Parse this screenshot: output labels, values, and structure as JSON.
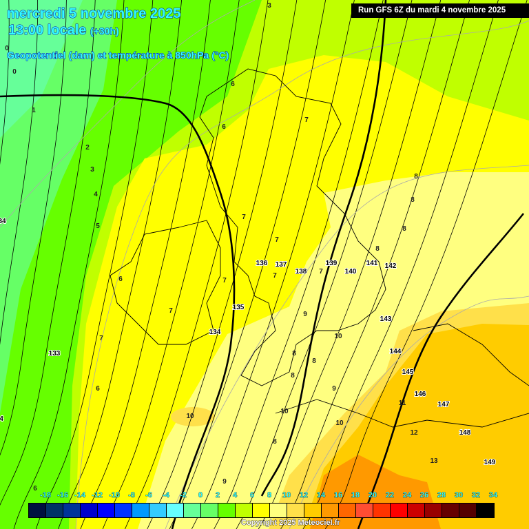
{
  "header": {
    "date": "mercredi 5 novembre 2025",
    "time": "13:00 locale",
    "lead": "(+30h)",
    "parameter": "Geopotentiel (dam) et température à 850hPa (°C)",
    "run": "Run GFS 6Z du mardi 4 novembre 2025"
  },
  "legend": {
    "ticks": [
      "-18",
      "-16",
      "-14",
      "-12",
      "-10",
      "-8",
      "-6",
      "-4",
      "-2",
      "0",
      "2",
      "4",
      "6",
      "8",
      "10",
      "12",
      "14",
      "16",
      "18",
      "20",
      "22",
      "24",
      "26",
      "28",
      "30",
      "32",
      "34"
    ],
    "colors": [
      "#001040",
      "#003366",
      "#003399",
      "#0000cc",
      "#0000ff",
      "#0033ff",
      "#0099ff",
      "#33ccff",
      "#66ffff",
      "#66ff99",
      "#66ff66",
      "#66ff00",
      "#c0ff00",
      "#ffff00",
      "#ffff80",
      "#ffe04a",
      "#ffcc00",
      "#ff9900",
      "#ff6600",
      "#ff4d33",
      "#ff3300",
      "#ff0000",
      "#cc0000",
      "#990000",
      "#660000",
      "#550000",
      "#000000"
    ]
  },
  "geopotential_labels": [
    "133",
    "134",
    "135",
    "136",
    "137",
    "138",
    "139",
    "140",
    "141",
    "142",
    "143",
    "144",
    "145",
    "146",
    "147",
    "148",
    "149",
    "34",
    "4"
  ],
  "temperature_labels": [
    "3",
    "0",
    "0",
    "1",
    "2",
    "3",
    "4",
    "5",
    "6",
    "6",
    "7",
    "8",
    "8",
    "8",
    "8",
    "7",
    "7",
    "7",
    "7",
    "6",
    "7",
    "7",
    "7",
    "6",
    "9",
    "10",
    "8",
    "8",
    "8",
    "9",
    "10",
    "10",
    "10",
    "11",
    "12",
    "13",
    "8",
    "9",
    "6"
  ],
  "zone_colors": {
    "t0": "#66ff99",
    "t2": "#66ff66",
    "t4": "#66ff00",
    "t6": "#c0ff00",
    "t8": "#ffff00",
    "t10": "#ffff80",
    "t12": "#ffe04a",
    "t14": "#ffcc00",
    "t16": "#ff9900"
  },
  "copyright": "Copyright 2025 Meteociel.fr"
}
